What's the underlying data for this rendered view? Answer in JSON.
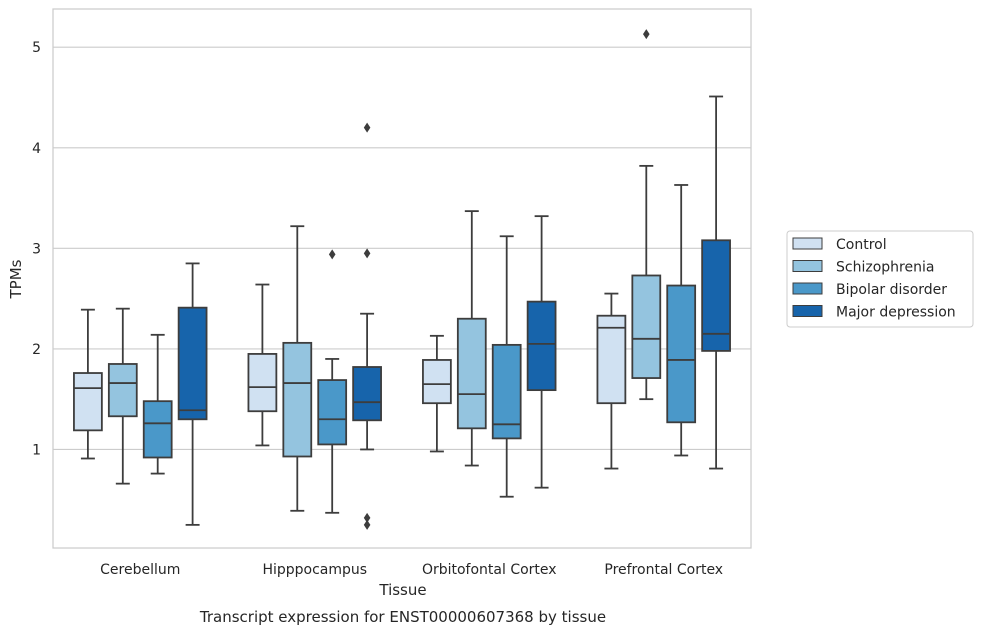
{
  "chart_data": {
    "type": "box",
    "caption": "Transcript expression for ENST00000607368 by tissue",
    "xlabel": "Tissue",
    "ylabel": "TPMs",
    "ylim": [
      0.02,
      5.38
    ],
    "yticks": [
      1,
      2,
      3,
      4,
      5
    ],
    "grid": "horizontal",
    "legend_position": "right",
    "categories": [
      "Cerebellum",
      "Hipppocampus",
      "Orbitofontal Cortex",
      "Prefrontal Cortex"
    ],
    "series": [
      {
        "name": "Control",
        "color": "#d0e1f2",
        "boxes": [
          {
            "whislo": 0.91,
            "q1": 1.19,
            "med": 1.61,
            "q3": 1.76,
            "whishi": 2.39,
            "fliers": []
          },
          {
            "whislo": 1.04,
            "q1": 1.38,
            "med": 1.62,
            "q3": 1.95,
            "whishi": 2.64,
            "fliers": []
          },
          {
            "whislo": 0.98,
            "q1": 1.46,
            "med": 1.65,
            "q3": 1.89,
            "whishi": 2.13,
            "fliers": []
          },
          {
            "whislo": 0.81,
            "q1": 1.46,
            "med": 2.21,
            "q3": 2.33,
            "whishi": 2.55,
            "fliers": []
          }
        ]
      },
      {
        "name": "Schizophrenia",
        "color": "#94c4df",
        "boxes": [
          {
            "whislo": 0.66,
            "q1": 1.33,
            "med": 1.66,
            "q3": 1.85,
            "whishi": 2.4,
            "fliers": []
          },
          {
            "whislo": 0.39,
            "q1": 0.93,
            "med": 1.66,
            "q3": 2.06,
            "whishi": 3.22,
            "fliers": []
          },
          {
            "whislo": 0.84,
            "q1": 1.21,
            "med": 1.55,
            "q3": 2.3,
            "whishi": 3.37,
            "fliers": []
          },
          {
            "whislo": 1.5,
            "q1": 1.71,
            "med": 2.1,
            "q3": 2.73,
            "whishi": 3.82,
            "fliers": [
              5.13
            ]
          }
        ]
      },
      {
        "name": "Bipolar disorder",
        "color": "#4a98c9",
        "boxes": [
          {
            "whislo": 0.76,
            "q1": 0.92,
            "med": 1.26,
            "q3": 1.48,
            "whishi": 2.14,
            "fliers": []
          },
          {
            "whislo": 0.37,
            "q1": 1.05,
            "med": 1.3,
            "q3": 1.69,
            "whishi": 1.9,
            "fliers": [
              2.94
            ]
          },
          {
            "whislo": 0.53,
            "q1": 1.11,
            "med": 1.25,
            "q3": 2.04,
            "whishi": 3.12,
            "fliers": []
          },
          {
            "whislo": 0.94,
            "q1": 1.27,
            "med": 1.89,
            "q3": 2.63,
            "whishi": 3.63,
            "fliers": []
          }
        ]
      },
      {
        "name": "Major depression",
        "color": "#1764ab",
        "boxes": [
          {
            "whislo": 0.25,
            "q1": 1.3,
            "med": 1.39,
            "q3": 2.41,
            "whishi": 2.85,
            "fliers": []
          },
          {
            "whislo": 1.0,
            "q1": 1.29,
            "med": 1.47,
            "q3": 1.82,
            "whishi": 2.35,
            "fliers": [
              0.25,
              0.32,
              2.95,
              4.2
            ]
          },
          {
            "whislo": 0.62,
            "q1": 1.59,
            "med": 2.05,
            "q3": 2.47,
            "whishi": 3.32,
            "fliers": []
          },
          {
            "whislo": 0.81,
            "q1": 1.98,
            "med": 2.15,
            "q3": 3.08,
            "whishi": 4.51,
            "fliers": []
          }
        ]
      }
    ]
  }
}
